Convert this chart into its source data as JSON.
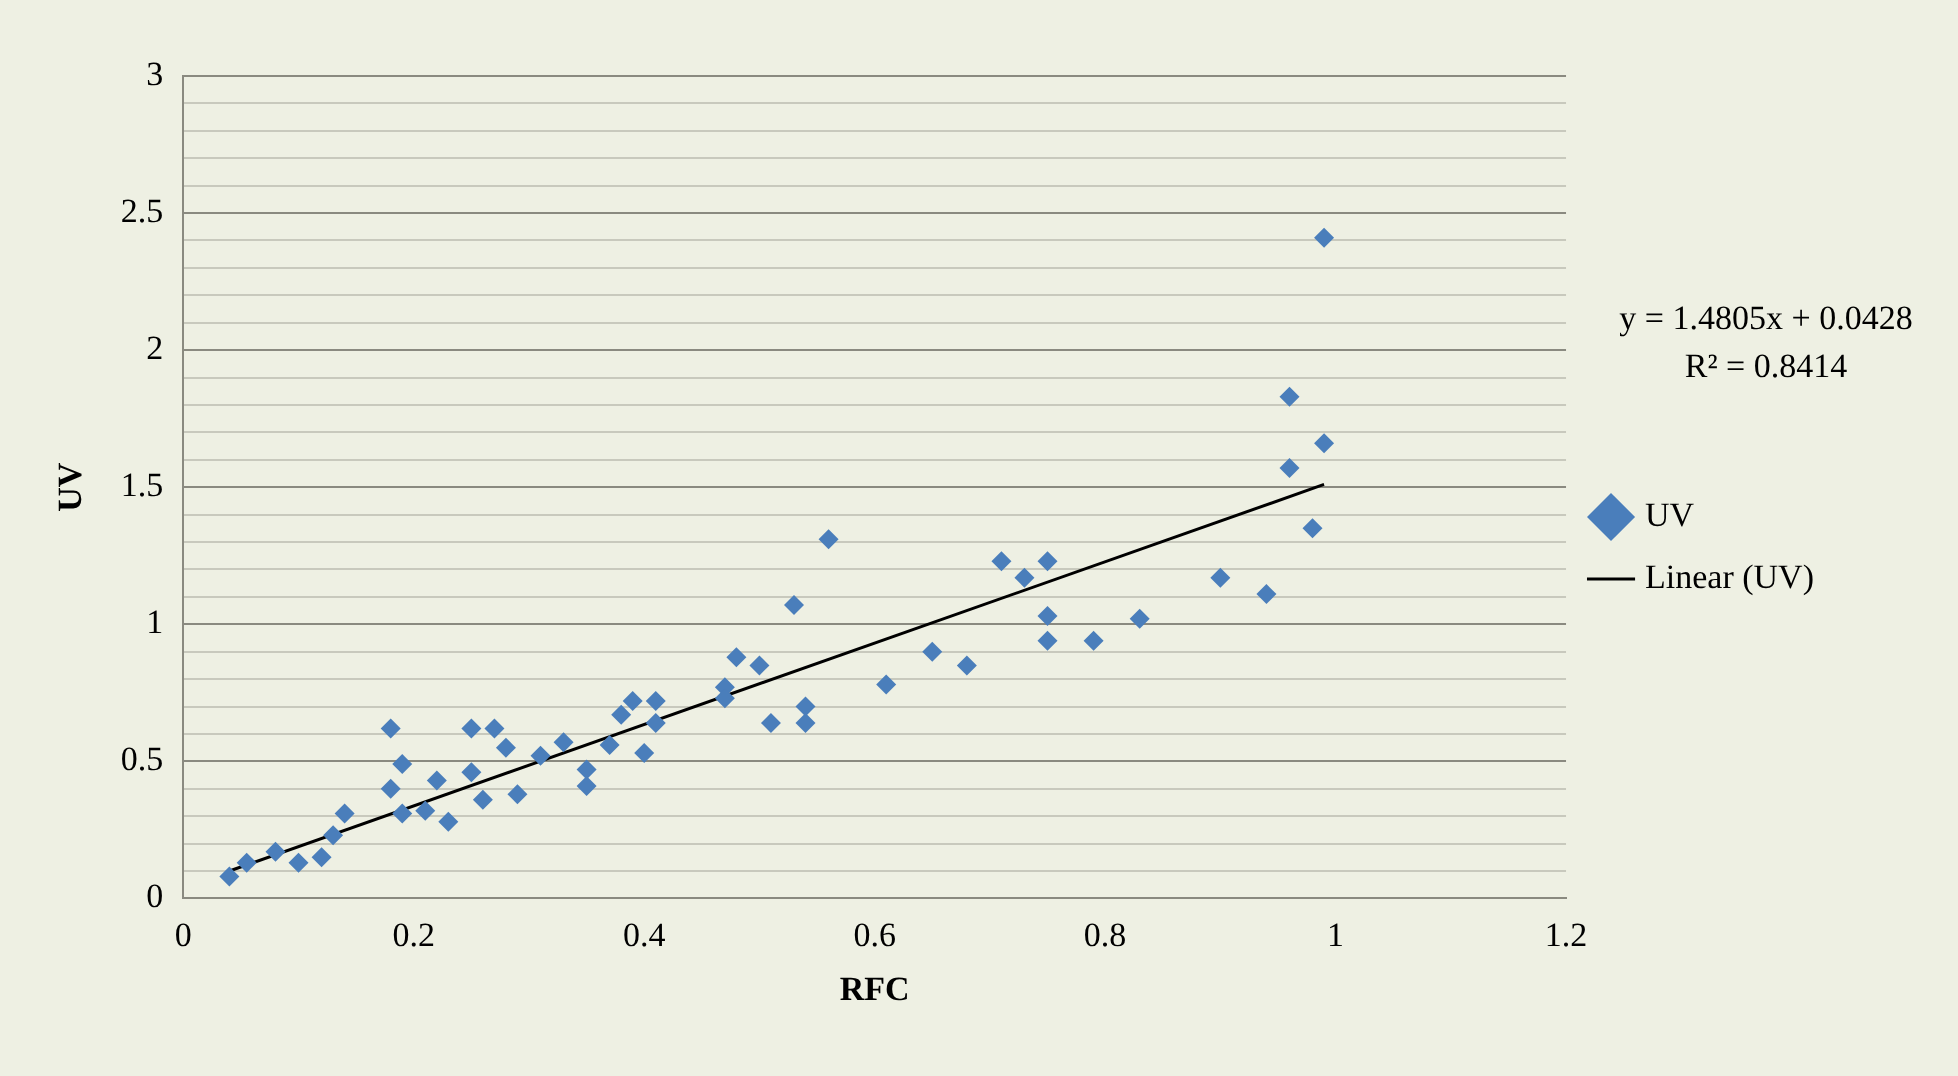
{
  "chart_data": {
    "type": "scatter",
    "xlabel": "RFC",
    "ylabel": "UV",
    "xlim": [
      0,
      1.2
    ],
    "xticks": [
      0,
      0.2,
      0.4,
      0.6,
      0.8,
      1,
      1.2
    ],
    "ylim": [
      0,
      3
    ],
    "yticks": [
      0,
      {
        "value": 0.1,
        "label": null
      },
      {
        "value": 0.2,
        "label": null
      },
      {
        "value": 0.3,
        "label": null
      },
      {
        "value": 0.4,
        "label": null
      },
      0.5,
      {
        "value": 0.6,
        "label": null
      },
      {
        "value": 0.7,
        "label": null
      },
      {
        "value": 0.8,
        "label": null
      },
      {
        "value": 0.9,
        "label": null
      },
      1,
      {
        "value": 1.1,
        "label": null
      },
      {
        "value": 1.2,
        "label": null
      },
      {
        "value": 1.3,
        "label": null
      },
      {
        "value": 1.4,
        "label": null
      },
      1.5,
      {
        "value": 1.6,
        "label": null
      },
      {
        "value": 1.7,
        "label": null
      },
      {
        "value": 1.8,
        "label": null
      },
      {
        "value": 1.9,
        "label": null
      },
      2,
      {
        "value": 2.1,
        "label": null
      },
      {
        "value": 2.2,
        "label": null
      },
      {
        "value": 2.3,
        "label": null
      },
      {
        "value": 2.4,
        "label": null
      },
      2.5,
      {
        "value": 2.6,
        "label": null
      },
      {
        "value": 2.7,
        "label": null
      },
      {
        "value": 2.8,
        "label": null
      },
      {
        "value": 2.9,
        "label": null
      },
      3
    ],
    "grid": "y",
    "legend": "right",
    "marker": "diamond",
    "annotations": [
      "y = 1.4805x + 0.0428",
      "R² = 0.8414"
    ],
    "series": [
      {
        "name": "UV",
        "type": "scatter",
        "color": "#4a7ebb",
        "x": [
          0.04,
          0.055,
          0.08,
          0.1,
          0.12,
          0.13,
          0.14,
          0.18,
          0.19,
          0.18,
          0.19,
          0.22,
          0.21,
          0.23,
          0.25,
          0.25,
          0.27,
          0.26,
          0.28,
          0.29,
          0.31,
          0.33,
          0.35,
          0.35,
          0.37,
          0.38,
          0.39,
          0.41,
          0.41,
          0.4,
          0.47,
          0.47,
          0.48,
          0.5,
          0.51,
          0.53,
          0.54,
          0.54,
          0.56,
          0.61,
          0.65,
          0.68,
          0.71,
          0.73,
          0.75,
          0.75,
          0.75,
          0.79,
          0.83,
          0.9,
          0.94,
          0.96,
          0.96,
          0.99,
          0.98,
          0.99
        ],
        "values": [
          0.08,
          0.13,
          0.17,
          0.13,
          0.15,
          0.23,
          0.31,
          0.62,
          0.49,
          0.4,
          0.31,
          0.43,
          0.32,
          0.28,
          0.62,
          0.46,
          0.62,
          0.36,
          0.55,
          0.38,
          0.52,
          0.57,
          0.47,
          0.41,
          0.56,
          0.67,
          0.72,
          0.72,
          0.64,
          0.53,
          0.77,
          0.73,
          0.88,
          0.85,
          0.64,
          1.07,
          0.7,
          0.64,
          1.31,
          0.78,
          0.9,
          0.85,
          1.23,
          1.17,
          1.23,
          1.03,
          0.94,
          0.94,
          1.02,
          1.17,
          1.11,
          1.83,
          1.57,
          1.66,
          1.35,
          2.41
        ]
      },
      {
        "name": "Linear (UV)",
        "type": "line",
        "color": "#000000",
        "marker": "none",
        "x": [
          0.04,
          0.99
        ],
        "values": [
          0.1,
          1.51
        ]
      }
    ]
  }
}
